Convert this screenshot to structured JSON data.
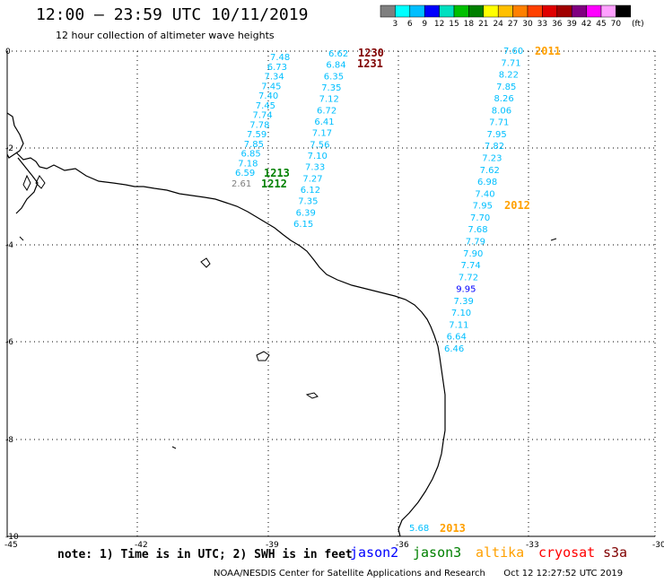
{
  "header": {
    "title": "12:00 – 23:59 UTC 10/11/2019",
    "subtitle": "12 hour collection of altimeter wave heights"
  },
  "colorbar": {
    "unit": "(ft)",
    "labels": [
      "3",
      "6",
      "9",
      "12",
      "15",
      "18",
      "21",
      "24",
      "27",
      "30",
      "33",
      "36",
      "39",
      "42",
      "45",
      "70"
    ],
    "colors": [
      "#7f7f7f",
      "#00ffff",
      "#00bfff",
      "#0000ff",
      "#00e0c0",
      "#00c000",
      "#008000",
      "#ffff00",
      "#ffc000",
      "#ff8000",
      "#ff4000",
      "#e00000",
      "#a00000",
      "#800080",
      "#ff00ff",
      "#ffa0ff",
      "#000000"
    ]
  },
  "axes": {
    "x_ticks": [
      "-45",
      "-42",
      "-39",
      "-36",
      "-33",
      "-30"
    ],
    "y_ticks": [
      "0",
      "-2",
      "-4",
      "-6",
      "-8",
      "-10"
    ]
  },
  "tracks": {
    "track1": {
      "color": "#00bfff",
      "points": [
        "7.48",
        "6.73",
        "7.34",
        "7.45",
        "7.40",
        "7.45",
        "7.74",
        "7.78",
        "7.59",
        "7.85",
        "6.85",
        "7.18",
        "6.59"
      ],
      "grey_point": "2.61",
      "grey_color": "#7f7f7f",
      "labels": [
        "1213",
        "1212"
      ],
      "label_color": "#008000"
    },
    "track2": {
      "color": "#00bfff",
      "points": [
        "6.62",
        "6.84",
        "6.35",
        "7.35",
        "7.12",
        "6.72",
        "6.41",
        "7.17",
        "7.56",
        "7.10",
        "7.33",
        "7.27",
        "6.12",
        "7.35",
        "6.39",
        "6.15"
      ],
      "labels": [
        "1230",
        "1231"
      ],
      "label_color": "#800000"
    },
    "track3": {
      "color": "#00bfff",
      "points": [
        "7.60",
        "7.71",
        "8.22",
        "7.85",
        "8.26",
        "8.06",
        "7.71",
        "7.95",
        "7.82",
        "7.23",
        "7.62",
        "6.98",
        "7.40",
        "7.95",
        "7.70",
        "7.68",
        "7.79",
        "7.90",
        "7.74",
        "7.72",
        "9.95",
        "7.39",
        "7.10",
        "7.11",
        "6.64",
        "6.46"
      ],
      "highlight_color": "#0000ff",
      "highlight_value": "9.95",
      "labels": [
        "2011",
        "2012"
      ],
      "label_color": "#ffa000"
    },
    "track4": {
      "color": "#00bfff",
      "points": [
        "5.68"
      ],
      "labels": [
        "2013"
      ],
      "label_color": "#ffa000"
    }
  },
  "footer": {
    "note": "note: 1) Time is in UTC; 2) SWH is in feet",
    "satellites": [
      {
        "name": "jason2",
        "color": "#0000ff"
      },
      {
        "name": "jason3",
        "color": "#008000"
      },
      {
        "name": "altika",
        "color": "#ffa000"
      },
      {
        "name": "cryosat",
        "color": "#ff0000"
      },
      {
        "name": "s3a",
        "color": "#800000"
      }
    ],
    "credit": "NOAA/NESDIS Center for Satellite Applications and Research",
    "timestamp": "Oct 12 12:27:52 UTC 2019"
  }
}
